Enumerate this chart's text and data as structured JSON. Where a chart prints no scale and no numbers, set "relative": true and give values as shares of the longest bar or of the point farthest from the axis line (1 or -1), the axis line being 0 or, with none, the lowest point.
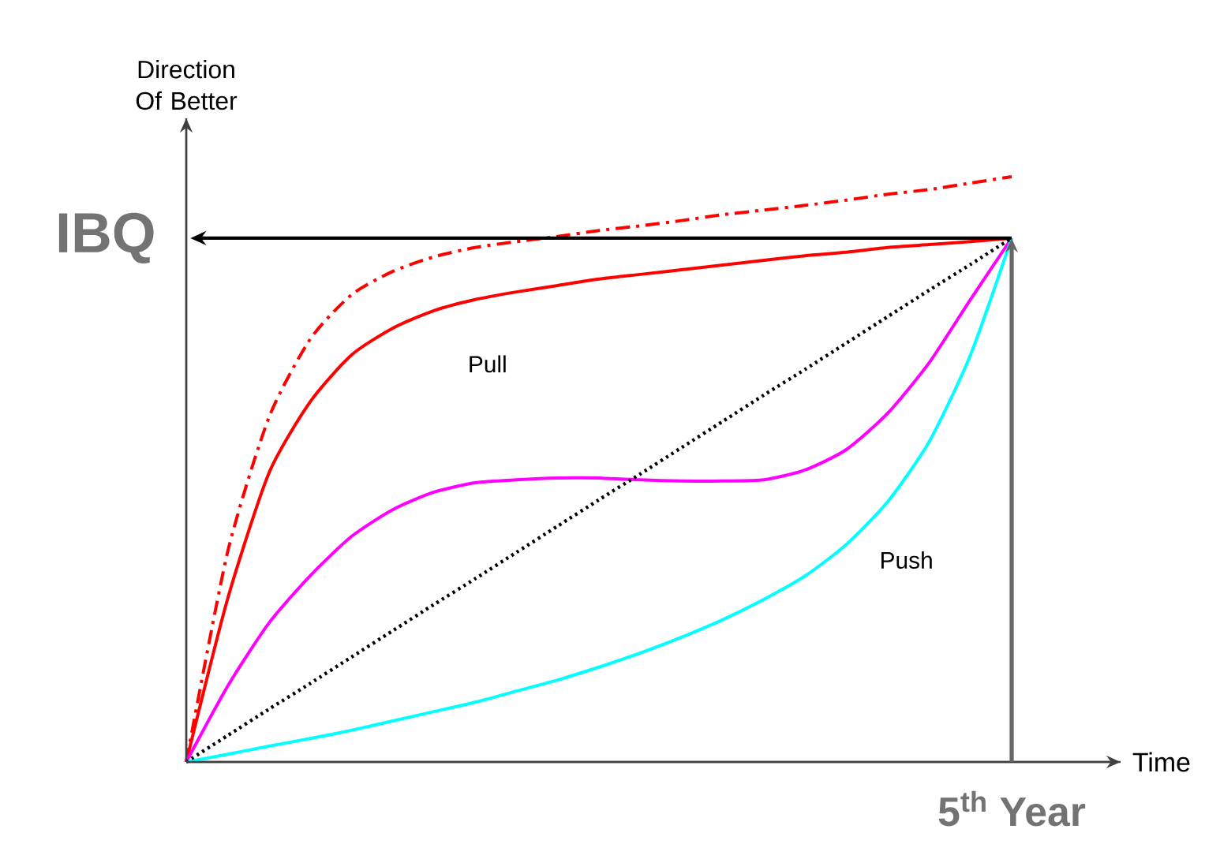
{
  "chart_data": {
    "type": "line",
    "relative": true,
    "xlabel": "Time",
    "ylabel": "Direction Of Better",
    "categories": [
      null,
      null,
      null,
      null,
      null,
      null,
      null,
      null,
      null,
      null,
      null,
      null,
      null,
      null,
      null,
      null,
      null,
      null,
      null,
      null,
      null
    ],
    "series": [
      {
        "name": "Pull",
        "color": "#ff0000",
        "line_style": "solid",
        "values": [
          0,
          0.278,
          0.493,
          0.615,
          0.695,
          0.741,
          0.771,
          0.79,
          0.803,
          0.814,
          0.825,
          0.833,
          0.841,
          0.849,
          0.857,
          0.865,
          0.871,
          0.879,
          0.884,
          0.889,
          0.895
        ]
      },
      {
        "color": "#ff0000",
        "line_style": "dashed",
        "values": [
          0,
          0.358,
          0.588,
          0.722,
          0.798,
          0.838,
          0.863,
          0.879,
          0.889,
          0.898,
          0.908,
          0.916,
          0.925,
          0.935,
          0.943,
          0.951,
          0.96,
          0.97,
          0.978,
          0.989,
          1
        ]
      },
      {
        "color": "#ff00ff",
        "line_style": "solid",
        "values": [
          0,
          0.129,
          0.237,
          0.318,
          0.385,
          0.431,
          0.461,
          0.477,
          0.482,
          0.485,
          0.485,
          0.482,
          0.48,
          0.48,
          0.482,
          0.499,
          0.534,
          0.596,
          0.682,
          0.79,
          0.895
        ]
      },
      {
        "name": "Push",
        "color": "#00ffff",
        "line_style": "solid",
        "values": [
          0,
          0.013,
          0.027,
          0.04,
          0.054,
          0.07,
          0.086,
          0.102,
          0.121,
          0.14,
          0.162,
          0.186,
          0.213,
          0.243,
          0.278,
          0.318,
          0.372,
          0.445,
          0.547,
          0.695,
          0.895
        ]
      },
      {
        "color": "#000000",
        "line_style": "dotted",
        "values": [
          0,
          0.045,
          0.09,
          0.134,
          0.179,
          0.224,
          0.269,
          0.313,
          0.358,
          0.403,
          0.448,
          0.492,
          0.537,
          0.582,
          0.627,
          0.671,
          0.716,
          0.761,
          0.806,
          0.85,
          0.895
        ]
      }
    ],
    "ref_lines": [
      {
        "axis": "y",
        "value": 0.895,
        "label": "IBQ",
        "color": "#000000"
      }
    ],
    "annotations": [
      "5$^{th}$ Year"
    ],
    "marker": "none",
    "grid": false,
    "legend": false
  }
}
